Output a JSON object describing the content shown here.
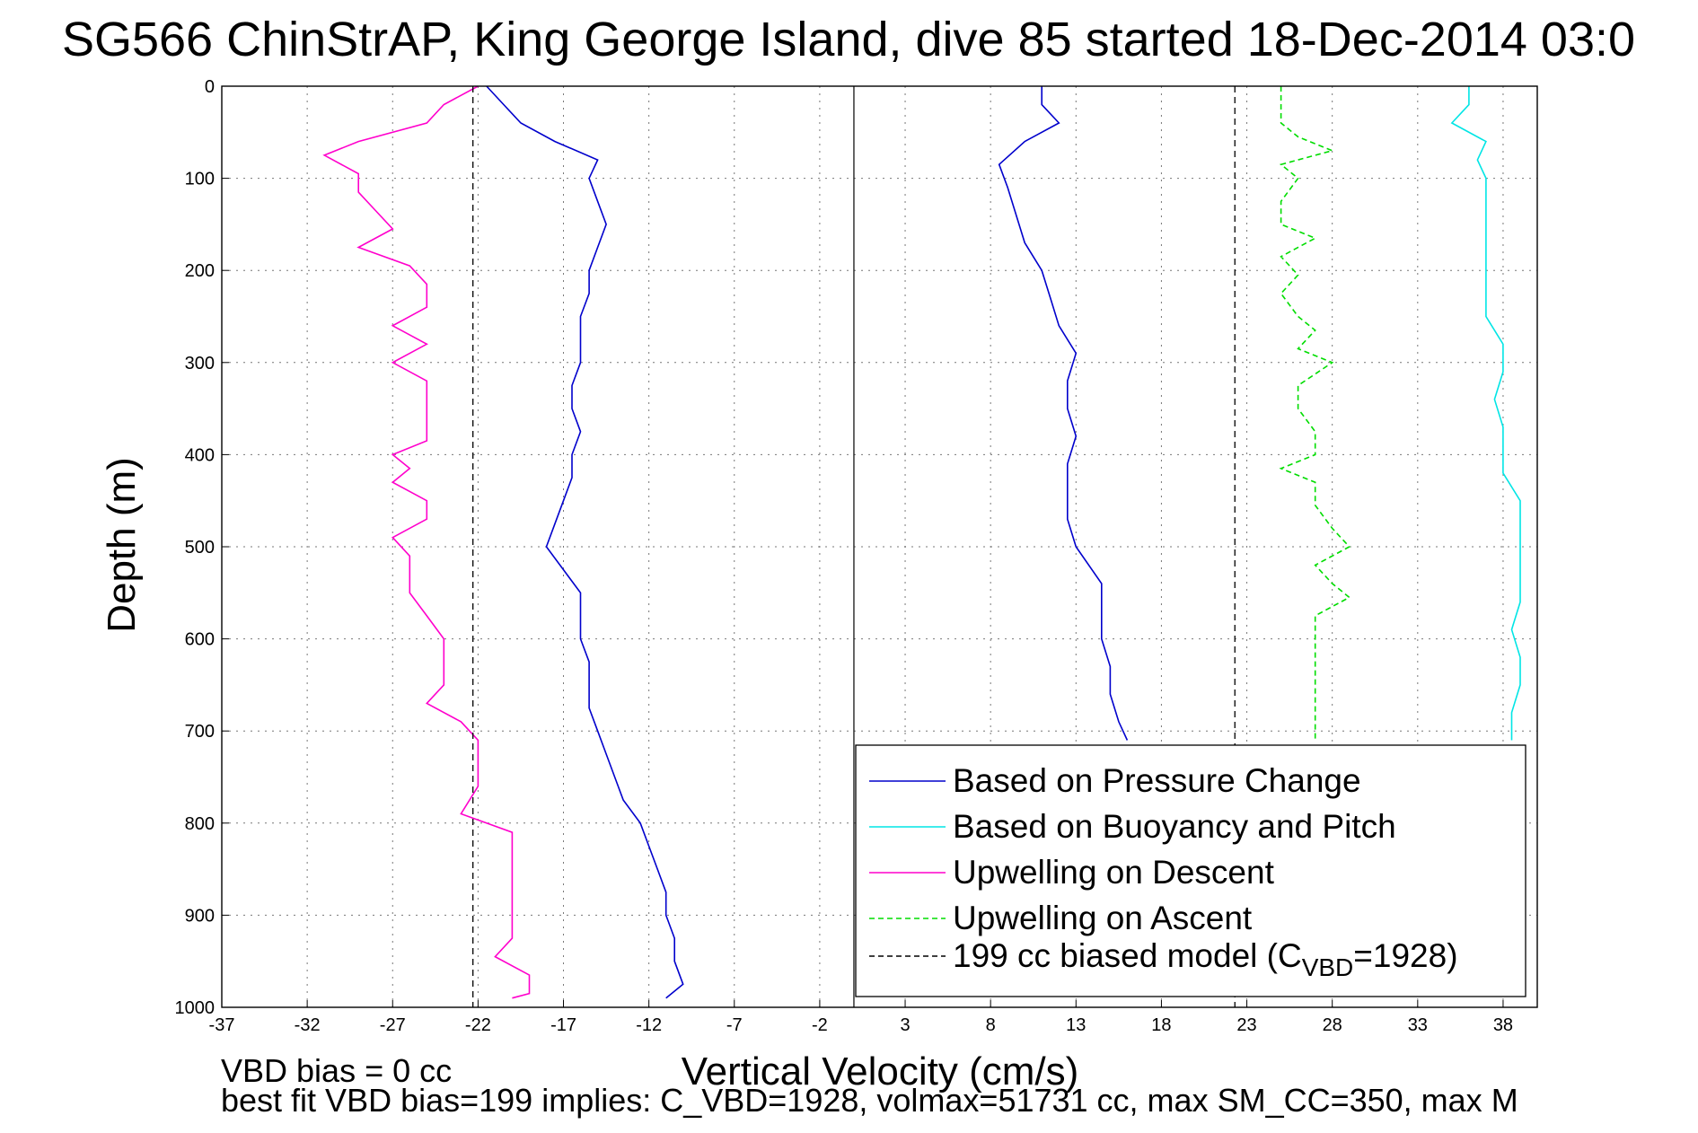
{
  "chart_data": {
    "type": "line",
    "title": "SG566 ChinStrAP, King George Island, dive 85 started 18-Dec-2014 03:0",
    "xlabel": "Vertical Velocity (cm/s)",
    "ylabel": "Depth (m)",
    "xlim": [
      -37,
      40
    ],
    "ylim": [
      0,
      1000
    ],
    "y_reversed": true,
    "grid": true,
    "x_ticks": [
      -37,
      -32,
      -27,
      -22,
      -17,
      -12,
      -7,
      -2,
      3,
      8,
      13,
      18,
      23,
      28,
      33,
      38
    ],
    "y_ticks": [
      0,
      100,
      200,
      300,
      400,
      500,
      600,
      700,
      800,
      900,
      1000
    ],
    "legend_position": "bottom-right",
    "colors": {
      "pressure": "#0000cc",
      "buoyancy": "#00e5e5",
      "upwelling_descent": "#ff00cc",
      "upwelling_ascent": "#00dd00",
      "model": "#000000"
    },
    "series": [
      {
        "name": "Based on Pressure Change",
        "style": "solid",
        "points": [
          [
            -21.5,
            0
          ],
          [
            -20.5,
            20
          ],
          [
            -19.5,
            40
          ],
          [
            -17.5,
            60
          ],
          [
            -15,
            80
          ],
          [
            -15.5,
            100
          ],
          [
            -15,
            125
          ],
          [
            -14.5,
            150
          ],
          [
            -15,
            175
          ],
          [
            -15.5,
            200
          ],
          [
            -15.5,
            225
          ],
          [
            -16,
            250
          ],
          [
            -16,
            275
          ],
          [
            -16,
            300
          ],
          [
            -16.5,
            325
          ],
          [
            -16.5,
            350
          ],
          [
            -16,
            375
          ],
          [
            -16.5,
            400
          ],
          [
            -16.5,
            425
          ],
          [
            -17,
            450
          ],
          [
            -17.5,
            475
          ],
          [
            -18,
            500
          ],
          [
            -17,
            525
          ],
          [
            -16,
            550
          ],
          [
            -16,
            575
          ],
          [
            -16,
            600
          ],
          [
            -15.5,
            625
          ],
          [
            -15.5,
            650
          ],
          [
            -15.5,
            675
          ],
          [
            -15,
            700
          ],
          [
            -14.5,
            725
          ],
          [
            -14,
            750
          ],
          [
            -13.5,
            775
          ],
          [
            -12.5,
            800
          ],
          [
            -12,
            825
          ],
          [
            -11.5,
            850
          ],
          [
            -11,
            875
          ],
          [
            -11,
            900
          ],
          [
            -10.5,
            925
          ],
          [
            -10.5,
            950
          ],
          [
            -10,
            975
          ],
          [
            -11,
            990
          ]
        ]
      },
      {
        "name": "",
        "style": "solid",
        "color_key": "pressure",
        "points": [
          [
            11,
            0
          ],
          [
            11,
            20
          ],
          [
            12,
            40
          ],
          [
            10,
            60
          ],
          [
            8.5,
            85
          ],
          [
            9,
            110
          ],
          [
            9.5,
            140
          ],
          [
            10,
            170
          ],
          [
            11,
            200
          ],
          [
            11.5,
            230
          ],
          [
            12,
            260
          ],
          [
            13,
            290
          ],
          [
            12.5,
            320
          ],
          [
            12.5,
            350
          ],
          [
            13,
            380
          ],
          [
            12.5,
            410
          ],
          [
            12.5,
            440
          ],
          [
            12.5,
            470
          ],
          [
            13,
            500
          ],
          [
            14.5,
            540
          ],
          [
            14.5,
            570
          ],
          [
            14.5,
            600
          ],
          [
            15,
            630
          ],
          [
            15,
            660
          ],
          [
            15.5,
            690
          ],
          [
            16,
            710
          ]
        ]
      },
      {
        "name": "Based on Buoyancy and Pitch",
        "style": "solid",
        "points": [
          [
            36,
            0
          ],
          [
            36,
            20
          ],
          [
            35,
            40
          ],
          [
            37,
            60
          ],
          [
            36.5,
            80
          ],
          [
            37,
            100
          ],
          [
            37,
            130
          ],
          [
            37,
            160
          ],
          [
            37,
            190
          ],
          [
            37,
            220
          ],
          [
            37,
            250
          ],
          [
            38,
            280
          ],
          [
            38,
            310
          ],
          [
            37.5,
            340
          ],
          [
            38,
            370
          ],
          [
            38,
            400
          ],
          [
            38,
            420
          ],
          [
            39,
            450
          ],
          [
            39,
            480
          ],
          [
            39,
            560
          ],
          [
            38.5,
            590
          ],
          [
            39,
            620
          ],
          [
            39,
            650
          ],
          [
            38.5,
            680
          ],
          [
            38.5,
            710
          ]
        ]
      },
      {
        "name": "Upwelling on Descent",
        "style": "solid",
        "points": [
          [
            -22,
            0
          ],
          [
            -24,
            20
          ],
          [
            -25,
            40
          ],
          [
            -29,
            60
          ],
          [
            -31,
            75
          ],
          [
            -29,
            95
          ],
          [
            -29,
            115
          ],
          [
            -28,
            135
          ],
          [
            -27,
            155
          ],
          [
            -29,
            175
          ],
          [
            -26,
            195
          ],
          [
            -25,
            215
          ],
          [
            -25,
            240
          ],
          [
            -27,
            260
          ],
          [
            -25,
            280
          ],
          [
            -27,
            300
          ],
          [
            -25,
            320
          ],
          [
            -25,
            340
          ],
          [
            -25,
            365
          ],
          [
            -25,
            385
          ],
          [
            -27,
            400
          ],
          [
            -26,
            415
          ],
          [
            -27,
            430
          ],
          [
            -25,
            450
          ],
          [
            -25,
            470
          ],
          [
            -27,
            490
          ],
          [
            -26,
            510
          ],
          [
            -26,
            530
          ],
          [
            -26,
            550
          ],
          [
            -25,
            575
          ],
          [
            -24,
            600
          ],
          [
            -24,
            625
          ],
          [
            -24,
            650
          ],
          [
            -25,
            670
          ],
          [
            -23,
            690
          ],
          [
            -22,
            710
          ],
          [
            -22,
            735
          ],
          [
            -22,
            760
          ],
          [
            -23,
            790
          ],
          [
            -20,
            810
          ],
          [
            -20,
            840
          ],
          [
            -20,
            870
          ],
          [
            -20,
            900
          ],
          [
            -20,
            925
          ],
          [
            -21,
            945
          ],
          [
            -19,
            965
          ],
          [
            -19,
            985
          ],
          [
            -20,
            990
          ]
        ]
      },
      {
        "name": "Upwelling on Ascent",
        "style": "dashed",
        "points": [
          [
            25,
            0
          ],
          [
            25,
            20
          ],
          [
            25,
            40
          ],
          [
            26,
            55
          ],
          [
            28,
            70
          ],
          [
            25,
            85
          ],
          [
            26,
            100
          ],
          [
            25,
            125
          ],
          [
            25,
            150
          ],
          [
            27,
            165
          ],
          [
            25,
            185
          ],
          [
            26,
            205
          ],
          [
            25,
            225
          ],
          [
            26,
            250
          ],
          [
            27,
            265
          ],
          [
            26,
            285
          ],
          [
            28,
            300
          ],
          [
            26,
            325
          ],
          [
            26,
            350
          ],
          [
            27,
            375
          ],
          [
            27,
            400
          ],
          [
            25,
            415
          ],
          [
            27,
            430
          ],
          [
            27,
            455
          ],
          [
            28,
            480
          ],
          [
            29,
            500
          ],
          [
            27,
            520
          ],
          [
            28,
            540
          ],
          [
            29,
            555
          ],
          [
            27,
            575
          ],
          [
            27,
            600
          ],
          [
            27,
            620
          ],
          [
            27,
            645
          ],
          [
            27,
            665
          ],
          [
            27,
            690
          ],
          [
            27,
            710
          ]
        ]
      },
      {
        "name": "199 cc biased model (C_VBD=1928)",
        "style": "dashed",
        "vertical_lines_x": [
          -22.3,
          22.3
        ]
      }
    ],
    "legend": [
      {
        "label": "Based on Pressure Change",
        "style": "solid",
        "color_key": "pressure"
      },
      {
        "label": "Based on Buoyancy and Pitch",
        "style": "solid",
        "color_key": "buoyancy"
      },
      {
        "label": "Upwelling on Descent",
        "style": "solid",
        "color_key": "upwelling_descent"
      },
      {
        "label": "Upwelling on Ascent",
        "style": "dashed",
        "color_key": "upwelling_ascent"
      },
      {
        "label_main": "199 cc biased model (C",
        "label_sub": "VBD",
        "label_end": "=1928)",
        "style": "dashed",
        "color_key": "model"
      }
    ]
  },
  "notes": {
    "line1": "VBD bias = 0 cc",
    "line2": "best fit VBD bias=199 implies: C_VBD=1928, volmax=51731 cc, max SM_CC=350, max M"
  }
}
